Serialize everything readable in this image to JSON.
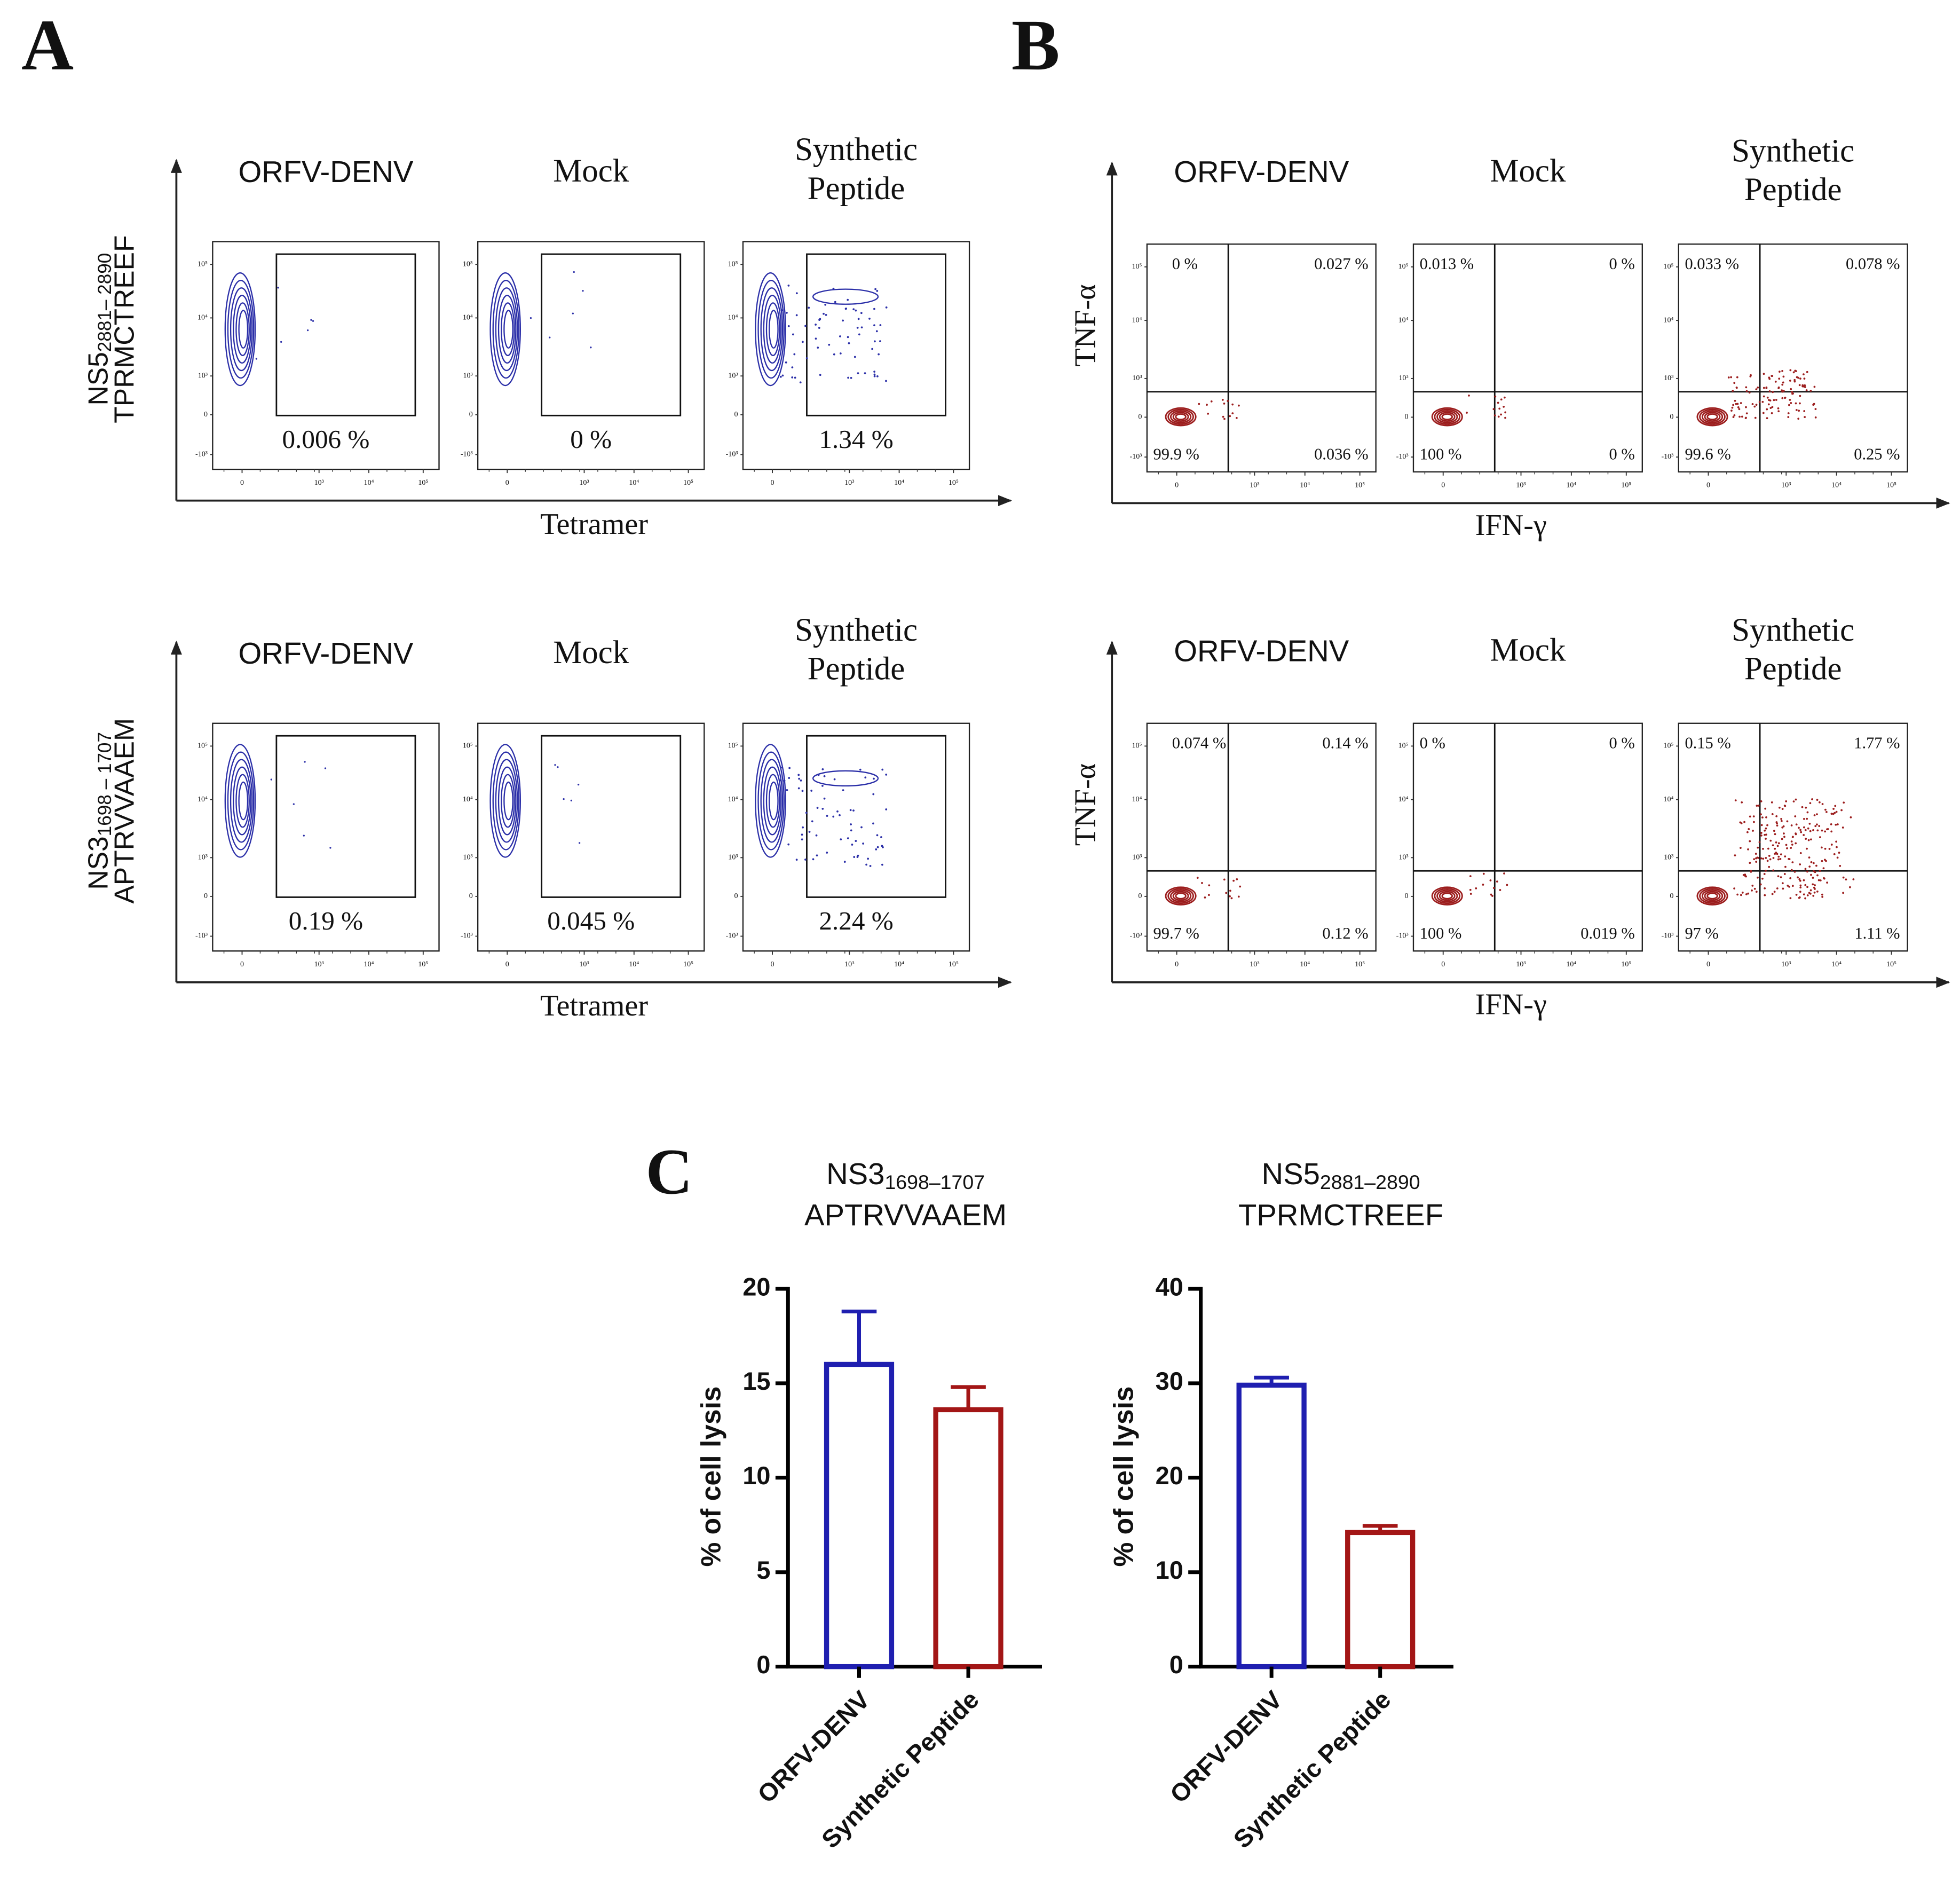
{
  "panel_a": {
    "label": "A",
    "x_label": "Tetramer",
    "columns": [
      [
        "ORFV-DENV"
      ],
      [
        "Mock"
      ],
      [
        "Synthetic",
        "Peptide"
      ]
    ],
    "rows": [
      {
        "label_main": "NS5",
        "label_sub": "2881– 2890",
        "label_seq": "TPRMCTREEF",
        "values": [
          "0.006 %",
          "0 %",
          "1.34 %"
        ]
      },
      {
        "label_main": "NS3",
        "label_sub": "1698 – 1707",
        "label_seq": "APTRVVAAEM",
        "values": [
          "0.19 %",
          "0.045 %",
          "2.24 %"
        ]
      }
    ]
  },
  "panel_b": {
    "label": "B",
    "x_label": "IFN-γ",
    "y_label": "TNF-α",
    "columns": [
      [
        "ORFV-DENV"
      ],
      [
        "Mock"
      ],
      [
        "Synthetic",
        "Peptide"
      ]
    ],
    "rows": [
      [
        [
          "0 %",
          "0.027 %",
          "99.9 %",
          "0.036 %"
        ],
        [
          "0.013 %",
          "0 %",
          "100 %",
          "0 %"
        ],
        [
          "0.033 %",
          "0.078 %",
          "99.6 %",
          "0.25 %"
        ]
      ],
      [
        [
          "0.074 %",
          "0.14 %",
          "99.7 %",
          "0.12 %"
        ],
        [
          "0 %",
          "0 %",
          "100 %",
          "0.019 %"
        ],
        [
          "0.15 %",
          "1.77 %",
          "97 %",
          "1.11 %"
        ]
      ]
    ]
  },
  "flow_ticks": {
    "y": [
      "10⁵",
      "10⁴",
      "10³",
      "0",
      "-10³"
    ],
    "x": [
      "0",
      "10³",
      "10⁴",
      "10⁵"
    ]
  },
  "panel_c_label": "C",
  "chart_data": [
    {
      "type": "bar",
      "title_main": "NS3",
      "title_sub": "1698–1707",
      "title_seq": "APTRVVAAEM",
      "y_label": "% of cell lysis",
      "categories": [
        "ORFV-DENV",
        "Synthetic Peptide"
      ],
      "values": [
        16,
        13.6
      ],
      "errors": [
        2.8,
        1.2
      ],
      "colors": [
        "#1f1fb0",
        "#a31616"
      ],
      "ylim": [
        0,
        20
      ],
      "yticks": [
        0,
        5,
        10,
        15,
        20
      ]
    },
    {
      "type": "bar",
      "title_main": "NS5",
      "title_sub": "2881–2890",
      "title_seq": "TPRMCTREEF",
      "y_label": "% of cell lysis",
      "categories": [
        "ORFV-DENV",
        "Synthetic Peptide"
      ],
      "values": [
        29.8,
        14.2
      ],
      "errors": [
        0.8,
        0.7
      ],
      "colors": [
        "#1f1fb0",
        "#a31616"
      ],
      "ylim": [
        0,
        40
      ],
      "yticks": [
        0,
        10,
        20,
        30,
        40
      ]
    }
  ]
}
